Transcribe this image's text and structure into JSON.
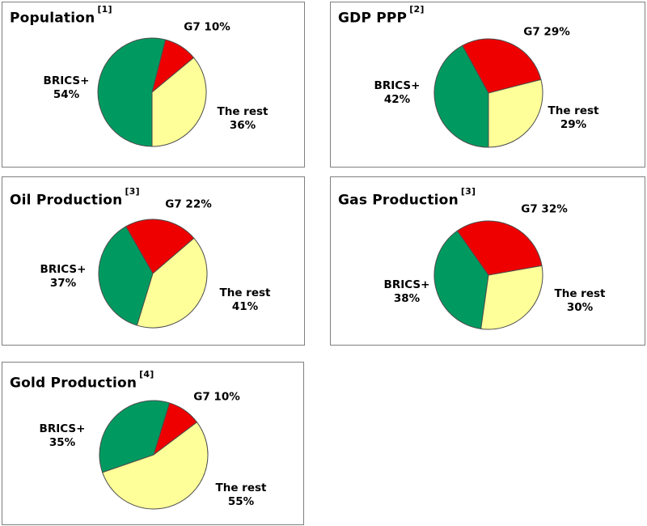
{
  "page": {
    "background": "#ffffff"
  },
  "colors": {
    "brics_green": "#009a60",
    "g7_red": "#ee0000",
    "rest_yellow": "#ffff99",
    "slice_outline": "#4d4d4d",
    "panel_border": "#7f7f7f",
    "text": "#000000"
  },
  "chart_data": [
    {
      "type": "pie",
      "title": "Population",
      "footnote_ref": "[1]",
      "legend_position": "none",
      "rotation_from_top_deg": 180,
      "slices": [
        {
          "label": "BRICS+",
          "value": 54,
          "color": "#009a60"
        },
        {
          "label": "G7",
          "value": 10,
          "color": "#ee0000"
        },
        {
          "label": "The rest",
          "value": 36,
          "color": "#ffff99"
        }
      ]
    },
    {
      "type": "pie",
      "title": "GDP PPP",
      "footnote_ref": "[2]",
      "legend_position": "none",
      "rotation_from_top_deg": 180,
      "slices": [
        {
          "label": "BRICS+",
          "value": 42,
          "color": "#009a60"
        },
        {
          "label": "G7",
          "value": 29,
          "color": "#ee0000"
        },
        {
          "label": "The rest",
          "value": 29,
          "color": "#ffff99"
        }
      ]
    },
    {
      "type": "pie",
      "title": "Oil Production",
      "footnote_ref": "[3]",
      "legend_position": "none",
      "rotation_from_top_deg": 197,
      "slices": [
        {
          "label": "BRICS+",
          "value": 37,
          "color": "#009a60"
        },
        {
          "label": "G7",
          "value": 22,
          "color": "#ee0000"
        },
        {
          "label": "The rest",
          "value": 41,
          "color": "#ffff99"
        }
      ]
    },
    {
      "type": "pie",
      "title": "Gas Production",
      "footnote_ref": "[3]",
      "legend_position": "none",
      "rotation_from_top_deg": 188,
      "slices": [
        {
          "label": "BRICS+",
          "value": 38,
          "color": "#009a60"
        },
        {
          "label": "G7",
          "value": 32,
          "color": "#ee0000"
        },
        {
          "label": "The rest",
          "value": 30,
          "color": "#ffff99"
        }
      ]
    },
    {
      "type": "pie",
      "title": "Gold Production",
      "footnote_ref": "[4]",
      "legend_position": "none",
      "rotation_from_top_deg": 251,
      "slices": [
        {
          "label": "BRICS+",
          "value": 35,
          "color": "#009a60"
        },
        {
          "label": "G7",
          "value": 10,
          "color": "#ee0000"
        },
        {
          "label": "The rest",
          "value": 55,
          "color": "#ffff99"
        }
      ]
    }
  ]
}
